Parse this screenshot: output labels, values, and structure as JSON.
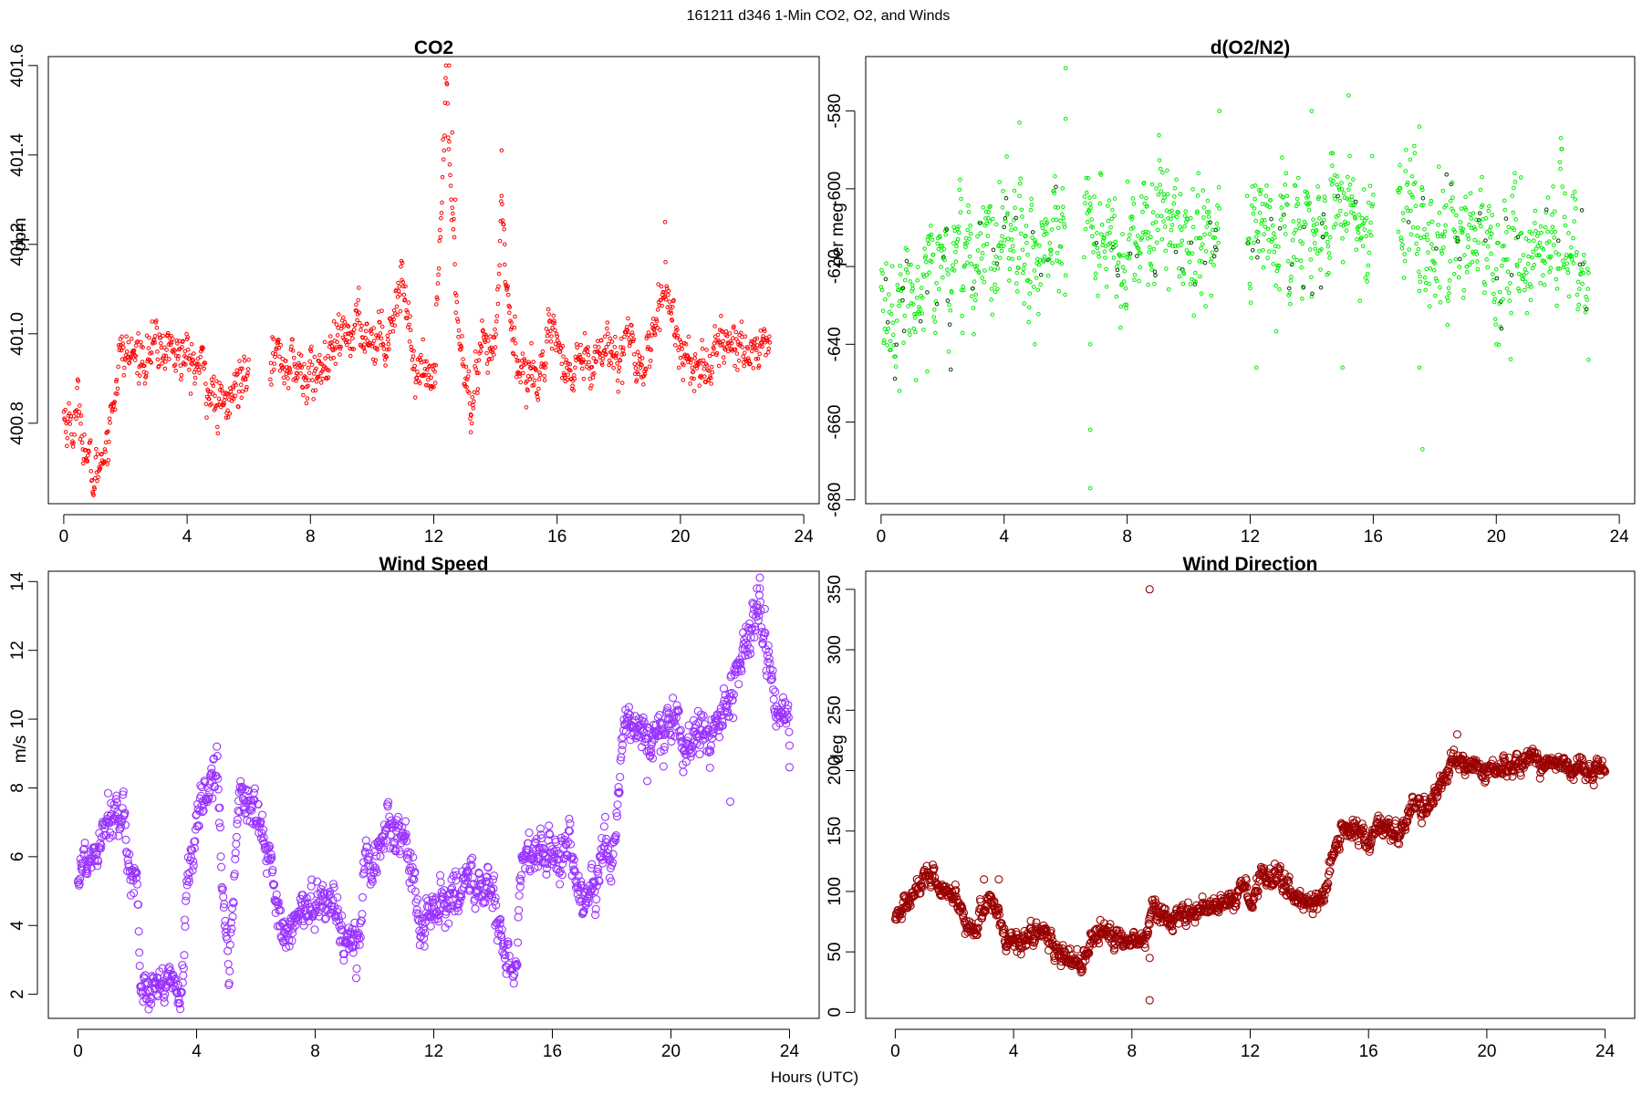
{
  "figure": {
    "title": "161211   d346   1-Min CO2, O2, and Winds",
    "xlabel": "Hours (UTC)"
  },
  "chart_data": [
    {
      "id": "co2",
      "type": "scatter",
      "title": "CO2",
      "xlabel": "",
      "ylabel": "ppm",
      "color": "#ff0000",
      "xlim": [
        -0.5,
        24.5
      ],
      "ylim": [
        400.62,
        401.62
      ],
      "xticks": [
        0,
        4,
        8,
        12,
        16,
        20,
        24
      ],
      "yticks": [
        400.8,
        401.0,
        401.2,
        401.4,
        401.6
      ],
      "ytick_labels": [
        "400.8",
        "401.0",
        "401.2",
        "401.4",
        "401.6"
      ],
      "gap": [
        6.0,
        6.7
      ],
      "series": [
        {
          "anchors": [
            [
              0,
              400.82
            ],
            [
              0.3,
              400.79
            ],
            [
              0.5,
              400.84
            ],
            [
              0.8,
              400.7
            ],
            [
              1.0,
              400.67
            ],
            [
              1.5,
              400.8
            ],
            [
              1.8,
              400.95
            ],
            [
              2.5,
              400.95
            ],
            [
              3.0,
              400.97
            ],
            [
              3.5,
              400.97
            ],
            [
              4.0,
              400.94
            ],
            [
              4.5,
              400.92
            ],
            [
              5.0,
              400.83
            ],
            [
              5.3,
              400.84
            ],
            [
              5.6,
              400.88
            ],
            [
              6.0,
              400.96
            ],
            [
              6.7,
              400.96
            ],
            [
              7.5,
              400.92
            ],
            [
              8.0,
              400.9
            ],
            [
              8.5,
              400.93
            ],
            [
              9.0,
              400.98
            ],
            [
              9.5,
              401.02
            ],
            [
              10.0,
              400.99
            ],
            [
              10.5,
              401.0
            ],
            [
              11.0,
              401.13
            ],
            [
              11.4,
              400.92
            ],
            [
              12.0,
              400.91
            ],
            [
              12.4,
              401.55
            ],
            [
              12.8,
              401.0
            ],
            [
              13.2,
              400.82
            ],
            [
              13.6,
              400.96
            ],
            [
              14.0,
              400.95
            ],
            [
              14.2,
              401.28
            ],
            [
              14.5,
              401.0
            ],
            [
              15.0,
              400.9
            ],
            [
              15.5,
              400.93
            ],
            [
              16.0,
              401.0
            ],
            [
              16.3,
              400.88
            ],
            [
              16.8,
              400.96
            ],
            [
              17.3,
              400.95
            ],
            [
              17.8,
              400.97
            ],
            [
              18.3,
              400.98
            ],
            [
              18.8,
              400.93
            ],
            [
              19.3,
              401.05
            ],
            [
              19.6,
              401.1
            ],
            [
              20.0,
              400.96
            ],
            [
              20.5,
              400.93
            ],
            [
              21.0,
              400.93
            ],
            [
              21.5,
              400.99
            ],
            [
              22.0,
              400.97
            ],
            [
              22.5,
              400.97
            ],
            [
              22.9,
              400.98
            ]
          ],
          "noise": 0.03,
          "spikes": [
            [
              12.5,
              401.6
            ],
            [
              12.6,
              401.45
            ],
            [
              12.7,
              401.3
            ],
            [
              14.2,
              401.41
            ],
            [
              14.3,
              401.2
            ],
            [
              13.2,
              400.78
            ],
            [
              19.5,
              401.25
            ]
          ]
        }
      ]
    },
    {
      "id": "o2",
      "type": "scatter",
      "title": "d(O2/N2)",
      "xlabel": "",
      "ylabel": "per meg",
      "color": "#00ee00",
      "dark_color": "#004400",
      "xlim": [
        -0.5,
        24.5
      ],
      "ylim": [
        -681,
        -566
      ],
      "xticks": [
        0,
        4,
        8,
        12,
        16,
        20,
        24
      ],
      "yticks": [
        -680,
        -660,
        -640,
        -620,
        -600,
        -580
      ],
      "ytick_labels": [
        "-680",
        "-660",
        "-640",
        "-620",
        "-600",
        "-580"
      ],
      "gaps": [
        [
          6.0,
          6.6
        ],
        [
          11.0,
          11.9
        ],
        [
          16.0,
          16.8
        ]
      ],
      "series": [
        {
          "anchors": [
            [
              0,
              -632
            ],
            [
              1.0,
              -628
            ],
            [
              2.0,
              -616
            ],
            [
              3.0,
              -617
            ],
            [
              4.0,
              -614
            ],
            [
              5.0,
              -614
            ],
            [
              6.0,
              -615
            ],
            [
              7.0,
              -612
            ],
            [
              8.0,
              -612
            ],
            [
              9.0,
              -610
            ],
            [
              10.0,
              -612
            ],
            [
              11.0,
              -612
            ],
            [
              12.0,
              -615
            ],
            [
              13.0,
              -614
            ],
            [
              14.0,
              -612
            ],
            [
              15.0,
              -609
            ],
            [
              16.0,
              -612
            ],
            [
              17.0,
              -611
            ],
            [
              18.0,
              -614
            ],
            [
              19.0,
              -612
            ],
            [
              20.0,
              -617
            ],
            [
              21.0,
              -614
            ],
            [
              22.0,
              -615
            ],
            [
              23.0,
              -617
            ]
          ],
          "noise": 8,
          "spikes": [
            [
              6.0,
              -569
            ],
            [
              6.0,
              -582
            ],
            [
              6.8,
              -677
            ],
            [
              6.8,
              -662
            ],
            [
              6.8,
              -640
            ],
            [
              4.5,
              -583
            ],
            [
              11.0,
              -580
            ],
            [
              14.0,
              -580
            ],
            [
              15.2,
              -576
            ],
            [
              17.5,
              -584
            ],
            [
              17.6,
              -667
            ],
            [
              17.5,
              -646
            ],
            [
              12.2,
              -646
            ],
            [
              15.0,
              -646
            ],
            [
              0.6,
              -652
            ],
            [
              1.5,
              -647
            ],
            [
              5.0,
              -640
            ],
            [
              20.0,
              -640
            ],
            [
              23.0,
              -644
            ]
          ]
        }
      ]
    },
    {
      "id": "wind-speed",
      "type": "scatter",
      "title": "Wind Speed",
      "xlabel": "",
      "ylabel": "m/s",
      "color": "#9933ff",
      "xlim": [
        -1.0,
        25.0
      ],
      "ylim": [
        1.3,
        14.3
      ],
      "xticks": [
        0,
        4,
        8,
        12,
        16,
        20,
        24
      ],
      "yticks": [
        2,
        4,
        6,
        8,
        10,
        12,
        14
      ],
      "ytick_labels": [
        "2",
        "4",
        "6",
        "8",
        "10",
        "12",
        "14"
      ],
      "series": [
        {
          "anchors": [
            [
              0,
              5.6
            ],
            [
              0.5,
              6.1
            ],
            [
              1.0,
              7.3
            ],
            [
              1.3,
              7.3
            ],
            [
              1.8,
              5.8
            ],
            [
              2.0,
              5.3
            ],
            [
              2.1,
              2.4
            ],
            [
              2.5,
              1.9
            ],
            [
              3.0,
              2.2
            ],
            [
              3.5,
              2.1
            ],
            [
              3.7,
              5.2
            ],
            [
              4.0,
              7.2
            ],
            [
              4.5,
              8.1
            ],
            [
              4.7,
              8.5
            ],
            [
              4.9,
              4.5
            ],
            [
              5.1,
              3.0
            ],
            [
              5.3,
              6.0
            ],
            [
              5.5,
              8.0
            ],
            [
              6.0,
              7.1
            ],
            [
              6.5,
              6.0
            ],
            [
              6.7,
              4.2
            ],
            [
              7.0,
              3.6
            ],
            [
              7.5,
              4.2
            ],
            [
              8.0,
              4.8
            ],
            [
              8.5,
              4.8
            ],
            [
              9.0,
              3.6
            ],
            [
              9.5,
              3.5
            ],
            [
              9.7,
              6.3
            ],
            [
              10.0,
              5.8
            ],
            [
              10.5,
              7.0
            ],
            [
              11.0,
              6.5
            ],
            [
              11.3,
              5.3
            ],
            [
              11.5,
              3.8
            ],
            [
              12.0,
              4.4
            ],
            [
              12.5,
              4.8
            ],
            [
              13.0,
              5.2
            ],
            [
              13.5,
              5.2
            ],
            [
              14.0,
              5.0
            ],
            [
              14.3,
              3.5
            ],
            [
              14.7,
              2.3
            ],
            [
              15.0,
              5.8
            ],
            [
              15.5,
              6.3
            ],
            [
              16.0,
              5.8
            ],
            [
              16.5,
              6.3
            ],
            [
              17.0,
              4.5
            ],
            [
              17.5,
              5.3
            ],
            [
              17.8,
              6.5
            ],
            [
              18.0,
              5.5
            ],
            [
              18.3,
              8.5
            ],
            [
              18.5,
              10.2
            ],
            [
              19.0,
              9.5
            ],
            [
              19.5,
              9.5
            ],
            [
              20.0,
              9.8
            ],
            [
              20.5,
              9.3
            ],
            [
              21.0,
              9.6
            ],
            [
              21.5,
              9.5
            ],
            [
              22.0,
              10.5
            ],
            [
              22.5,
              12.0
            ],
            [
              23.0,
              13.3
            ],
            [
              23.3,
              11.5
            ],
            [
              23.7,
              10.2
            ],
            [
              24.0,
              9.8
            ]
          ],
          "noise": 0.35,
          "spikes": [
            [
              22.9,
              13.8
            ],
            [
              23.0,
              13.8
            ],
            [
              22.0,
              7.6
            ],
            [
              19.2,
              8.2
            ],
            [
              24.0,
              8.6
            ]
          ]
        }
      ]
    },
    {
      "id": "wind-direction",
      "type": "scatter",
      "title": "Wind Direction",
      "xlabel": "",
      "ylabel": "deg",
      "color": "#990000",
      "xlim": [
        -1.0,
        25.0
      ],
      "ylim": [
        -5,
        365
      ],
      "xticks": [
        0,
        4,
        8,
        12,
        16,
        20,
        24
      ],
      "yticks": [
        0,
        50,
        100,
        150,
        200,
        250,
        300,
        350
      ],
      "ytick_labels": [
        "0",
        "50",
        "100",
        "150",
        "200",
        "250",
        "300",
        "350"
      ],
      "series": [
        {
          "anchors": [
            [
              0,
              75
            ],
            [
              0.3,
              88
            ],
            [
              0.7,
              100
            ],
            [
              1.0,
              108
            ],
            [
              1.3,
              110
            ],
            [
              1.5,
              100
            ],
            [
              2.0,
              95
            ],
            [
              2.3,
              75
            ],
            [
              2.7,
              68
            ],
            [
              3.0,
              90
            ],
            [
              3.3,
              92
            ],
            [
              3.5,
              82
            ],
            [
              3.7,
              60
            ],
            [
              4.5,
              62
            ],
            [
              5.0,
              70
            ],
            [
              5.3,
              52
            ],
            [
              5.8,
              44
            ],
            [
              6.3,
              42
            ],
            [
              6.7,
              60
            ],
            [
              7.0,
              65
            ],
            [
              7.5,
              62
            ],
            [
              8.0,
              60
            ],
            [
              8.5,
              62
            ],
            [
              8.7,
              90
            ],
            [
              9.0,
              78
            ],
            [
              10.0,
              82
            ],
            [
              11.0,
              88
            ],
            [
              11.5,
              95
            ],
            [
              11.8,
              108
            ],
            [
              12.0,
              85
            ],
            [
              12.3,
              110
            ],
            [
              12.7,
              115
            ],
            [
              13.0,
              112
            ],
            [
              13.5,
              95
            ],
            [
              14.0,
              92
            ],
            [
              14.5,
              93
            ],
            [
              14.7,
              120
            ],
            [
              15.0,
              148
            ],
            [
              15.5,
              150
            ],
            [
              16.0,
              140
            ],
            [
              16.5,
              155
            ],
            [
              17.0,
              148
            ],
            [
              17.5,
              168
            ],
            [
              18.0,
              170
            ],
            [
              18.3,
              180
            ],
            [
              18.5,
              195
            ],
            [
              19.0,
              205
            ],
            [
              19.5,
              205
            ],
            [
              20.0,
              198
            ],
            [
              20.5,
              200
            ],
            [
              21.0,
              205
            ],
            [
              21.5,
              212
            ],
            [
              22.0,
              205
            ],
            [
              22.5,
              205
            ],
            [
              23.0,
              200
            ],
            [
              23.5,
              200
            ],
            [
              24.0,
              202
            ]
          ],
          "noise": 4.5,
          "spikes": [
            [
              8.6,
              350
            ],
            [
              8.6,
              10
            ],
            [
              19.0,
              230
            ],
            [
              8.6,
              45
            ],
            [
              3.0,
              110
            ],
            [
              3.5,
              110
            ]
          ]
        }
      ]
    }
  ]
}
